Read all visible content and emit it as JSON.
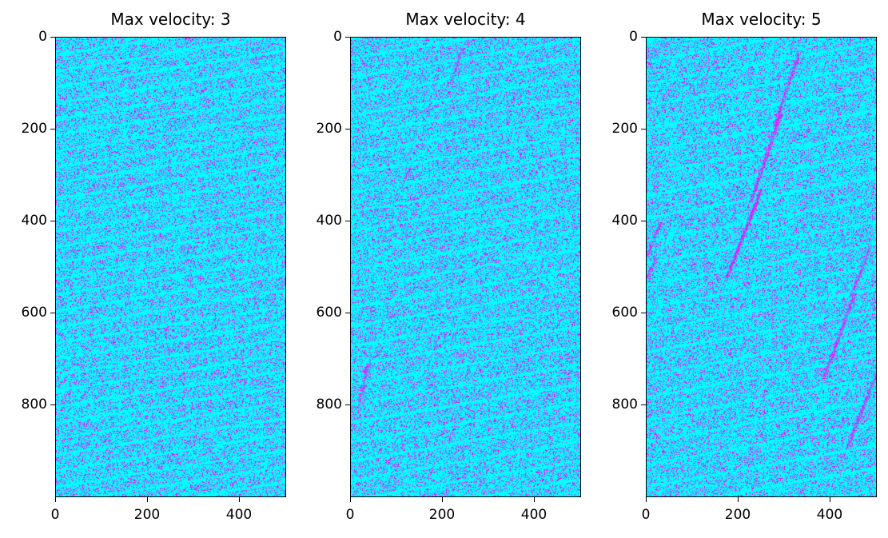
{
  "chart_data": [
    {
      "type": "heatmap",
      "title": "Max velocity: 3",
      "max_velocity": 3,
      "xlim": [
        0,
        500
      ],
      "ylim": [
        1000,
        0
      ],
      "x_ticks": [
        0,
        200,
        400
      ],
      "y_ticks": [
        0,
        200,
        400,
        600,
        800
      ],
      "grid": false,
      "colors": {
        "empty": "#00ffff",
        "occupied": "#ff00ff"
      }
    },
    {
      "type": "heatmap",
      "title": "Max velocity: 4",
      "max_velocity": 4,
      "xlim": [
        0,
        500
      ],
      "ylim": [
        1000,
        0
      ],
      "x_ticks": [
        0,
        200,
        400
      ],
      "y_ticks": [
        0,
        200,
        400,
        600,
        800
      ],
      "grid": false,
      "colors": {
        "empty": "#00ffff",
        "occupied": "#ff00ff"
      }
    },
    {
      "type": "heatmap",
      "title": "Max velocity: 5",
      "max_velocity": 5,
      "xlim": [
        0,
        500
      ],
      "ylim": [
        1000,
        0
      ],
      "x_ticks": [
        0,
        200,
        400
      ],
      "y_ticks": [
        0,
        200,
        400,
        600,
        800
      ],
      "grid": false,
      "colors": {
        "empty": "#00ffff",
        "occupied": "#ff00ff"
      }
    }
  ]
}
